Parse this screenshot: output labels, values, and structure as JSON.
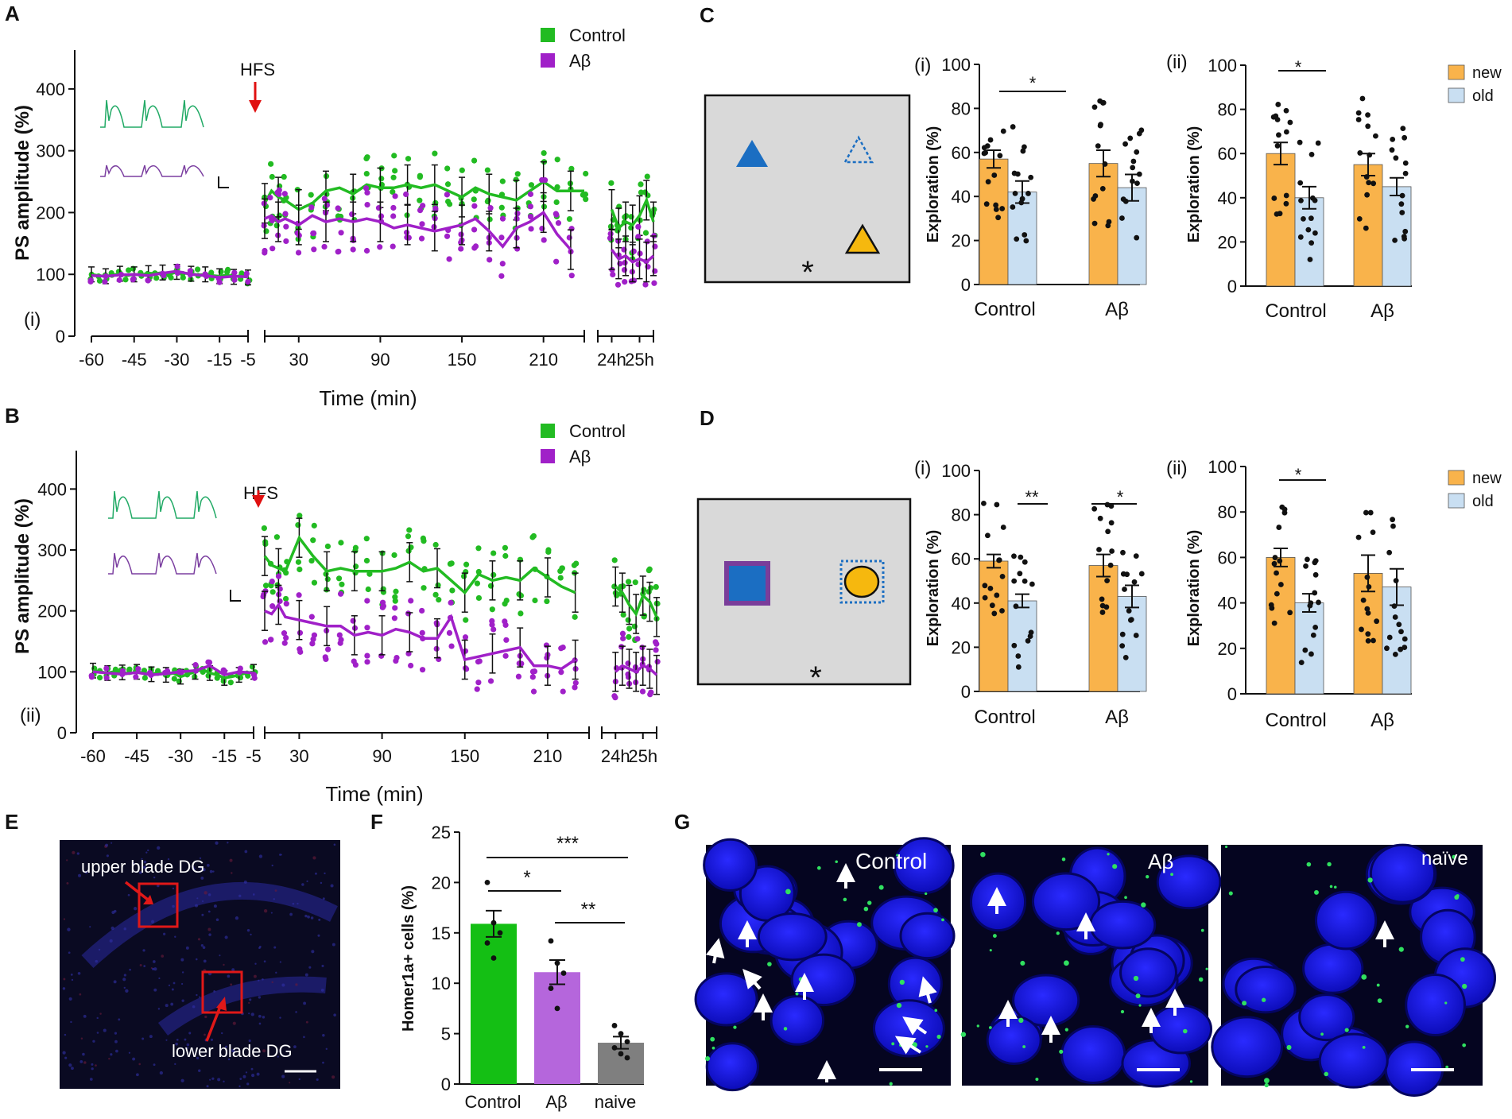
{
  "colors": {
    "control": "#22bb22",
    "abeta": "#a020c8",
    "new": "#f9b34b",
    "old": "#c9dff2",
    "hfs_arrow": "#e01010",
    "box": "#d9d9d9",
    "blue_object": "#1b6ec2",
    "yellow_object": "#f6b80e",
    "purple_frame": "#7a3d9a",
    "naive_bar": "#7f7f7f",
    "abeta_bar": "#b566dc",
    "control_bar": "#14bf14",
    "nuclei": "#1414dc",
    "roi_box": "#e01818"
  },
  "chart_data": [
    {
      "panel": "A",
      "subpanel": "(i)",
      "type": "line",
      "ylabel": "PS amplitude (%)",
      "xlabel": "Time (min)",
      "ylim": [
        0,
        450
      ],
      "yticks": [
        0,
        100,
        200,
        300,
        400
      ],
      "annotation": "HFS",
      "legend": [
        "Control",
        "Aβ"
      ],
      "segments": [
        {
          "range": [
            -60,
            -5
          ],
          "ticks": [
            -60,
            -45,
            -30,
            -15,
            -5
          ],
          "tick_labels": [
            "-60",
            "-45",
            "-30",
            "-15",
            "-5"
          ]
        },
        {
          "range": [
            5,
            240
          ],
          "ticks": [
            30,
            90,
            150,
            210
          ],
          "tick_labels": [
            "30",
            "90",
            "150",
            "210"
          ]
        },
        {
          "range": [
            23.5,
            25.5
          ],
          "ticks": [
            24,
            25
          ],
          "tick_labels": [
            "24h",
            "25h"
          ]
        }
      ],
      "series": [
        {
          "name": "Control",
          "pre": {
            "x": [
              -60,
              -57.5,
              -55,
              -52.5,
              -50,
              -47.5,
              -45,
              -42.5,
              -40,
              -37.5,
              -35,
              -32.5,
              -30,
              -27.5,
              -25,
              -22.5,
              -20,
              -17.5,
              -15,
              -12.5,
              -10,
              -7.5,
              -5
            ],
            "y": [
              100,
              98,
              97,
              99,
              101,
              98,
              100,
              99,
              102,
              101,
              103,
              100,
              104,
              102,
              101,
              99,
              100,
              98,
              97,
              99,
              96,
              98,
              95
            ]
          },
          "post": {
            "x": [
              5,
              10,
              15,
              20,
              30,
              40,
              50,
              60,
              70,
              80,
              90,
              100,
              110,
              120,
              130,
              140,
              150,
              160,
              170,
              180,
              190,
              200,
              210,
              220,
              230,
              240
            ],
            "y": [
              215,
              235,
              225,
              220,
              205,
              215,
              235,
              240,
              230,
              245,
              240,
              240,
              245,
              240,
              245,
              235,
              225,
              240,
              230,
              225,
              220,
              235,
              250,
              235,
              235,
              235
            ]
          },
          "late": {
            "x": [
              24,
              24.25,
              24.5,
              24.75,
              25,
              25.25,
              25.5
            ],
            "y": [
              205,
              175,
              185,
              180,
              195,
              220,
              185
            ]
          }
        },
        {
          "name": "Aβ",
          "pre": {
            "x": [
              -60,
              -55,
              -50,
              -45,
              -40,
              -35,
              -30,
              -25,
              -20,
              -15,
              -10,
              -5
            ],
            "y": [
              98,
              97,
              99,
              100,
              98,
              102,
              105,
              100,
              98,
              95,
              97,
              96
            ]
          },
          "post": {
            "x": [
              5,
              10,
              15,
              20,
              30,
              40,
              50,
              60,
              70,
              80,
              90,
              100,
              110,
              120,
              130,
              140,
              150,
              160,
              170,
              180,
              190,
              200,
              210,
              220,
              230
            ],
            "y": [
              190,
              195,
              185,
              190,
              180,
              195,
              185,
              190,
              185,
              190,
              185,
              175,
              180,
              175,
              170,
              175,
              180,
              190,
              170,
              145,
              175,
              185,
              200,
              165,
              140
            ]
          },
          "late": {
            "x": [
              24,
              24.25,
              24.5,
              24.75,
              25,
              25.25,
              25.5
            ],
            "y": [
              140,
              125,
              130,
              120,
              125,
              120,
              130
            ]
          }
        }
      ]
    },
    {
      "panel": "B",
      "subpanel": "(ii)",
      "type": "line",
      "ylabel": "PS amplitude (%)",
      "xlabel": "Time (min)",
      "ylim": [
        0,
        450
      ],
      "yticks": [
        0,
        100,
        200,
        300,
        400
      ],
      "annotation": "HFS",
      "legend": [
        "Control",
        "Aβ"
      ],
      "segments": [
        {
          "range": [
            -60,
            -5
          ],
          "ticks": [
            -60,
            -45,
            -30,
            -15,
            -5
          ],
          "tick_labels": [
            "-60",
            "-45",
            "-30",
            "-15",
            "-5"
          ]
        },
        {
          "range": [
            5,
            240
          ],
          "ticks": [
            30,
            90,
            150,
            210
          ],
          "tick_labels": [
            "30",
            "90",
            "150",
            "210"
          ]
        },
        {
          "range": [
            23.5,
            25.5
          ],
          "ticks": [
            24,
            25
          ],
          "tick_labels": [
            "24h",
            "25h"
          ]
        }
      ],
      "series": [
        {
          "name": "Control",
          "pre": {
            "x": [
              -60,
              -57.5,
              -55,
              -52.5,
              -50,
              -47.5,
              -45,
              -42.5,
              -40,
              -37.5,
              -35,
              -32.5,
              -30,
              -27.5,
              -25,
              -22.5,
              -20,
              -17.5,
              -15,
              -12.5,
              -10,
              -7.5,
              -5
            ],
            "y": [
              102,
              100,
              98,
              101,
              99,
              97,
              100,
              98,
              96,
              99,
              95,
              98,
              92,
              96,
              100,
              104,
              98,
              95,
              90,
              92,
              95,
              98,
              100
            ]
          },
          "post": {
            "x": [
              5,
              10,
              15,
              20,
              30,
              40,
              50,
              60,
              70,
              80,
              90,
              100,
              110,
              120,
              130,
              140,
              150,
              160,
              170,
              180,
              190,
              200,
              210,
              220,
              230
            ],
            "y": [
              290,
              275,
              270,
              265,
              320,
              290,
              265,
              270,
              265,
              265,
              265,
              270,
              280,
              265,
              270,
              250,
              230,
              260,
              250,
              255,
              250,
              270,
              255,
              240,
              230
            ]
          },
          "late": {
            "x": [
              24,
              24.25,
              24.5,
              24.75,
              25,
              25.25,
              25.5
            ],
            "y": [
              240,
              230,
              210,
              195,
              225,
              215,
              190
            ]
          }
        },
        {
          "name": "Aβ",
          "pre": {
            "x": [
              -60,
              -55,
              -50,
              -45,
              -40,
              -35,
              -30,
              -25,
              -20,
              -15,
              -10,
              -5
            ],
            "y": [
              100,
              98,
              96,
              99,
              95,
              97,
              100,
              102,
              110,
              95,
              100,
              98
            ]
          },
          "post": {
            "x": [
              5,
              10,
              15,
              20,
              30,
              40,
              50,
              60,
              70,
              80,
              90,
              100,
              110,
              120,
              130,
              140,
              150,
              160,
              170,
              180,
              190,
              200,
              210,
              220,
              230
            ],
            "y": [
              200,
              195,
              210,
              190,
              185,
              180,
              175,
              175,
              160,
              165,
              160,
              170,
              165,
              155,
              155,
              190,
              120,
              125,
              130,
              135,
              140,
              110,
              110,
              105,
              120
            ]
          },
          "late": {
            "x": [
              24,
              24.25,
              24.5,
              24.75,
              25,
              25.25,
              25.5
            ],
            "y": [
              100,
              110,
              105,
              100,
              110,
              105,
              95
            ]
          }
        }
      ]
    },
    {
      "panel": "C",
      "subpanel": "(i)",
      "type": "bar",
      "ylabel": "Exploration (%)",
      "ylim": [
        0,
        100
      ],
      "yticks": [
        0,
        20,
        40,
        60,
        80,
        100
      ],
      "categories": [
        "Control",
        "Aβ"
      ],
      "legend": [
        "new",
        "old"
      ],
      "series": [
        {
          "name": "new",
          "values": [
            57,
            55
          ],
          "sem": [
            4,
            6
          ]
        },
        {
          "name": "old",
          "values": [
            42,
            44
          ],
          "sem": [
            5,
            6
          ]
        }
      ],
      "significance": [
        {
          "group": "Control",
          "label": "*"
        }
      ]
    },
    {
      "panel": "C",
      "subpanel": "(ii)",
      "type": "bar",
      "ylabel": "Exploration (%)",
      "ylim": [
        0,
        100
      ],
      "yticks": [
        0,
        20,
        40,
        60,
        80,
        100
      ],
      "categories": [
        "Control",
        "Aβ"
      ],
      "legend": [
        "new",
        "old"
      ],
      "series": [
        {
          "name": "new",
          "values": [
            60,
            55
          ],
          "sem": [
            5,
            5
          ]
        },
        {
          "name": "old",
          "values": [
            40,
            45
          ],
          "sem": [
            5,
            4
          ]
        }
      ],
      "significance": [
        {
          "group": "Control",
          "label": "*"
        }
      ]
    },
    {
      "panel": "D",
      "subpanel": "(i)",
      "type": "bar",
      "ylabel": "Exploration (%)",
      "ylim": [
        0,
        100
      ],
      "yticks": [
        0,
        20,
        40,
        60,
        80,
        100
      ],
      "categories": [
        "Control",
        "Aβ"
      ],
      "legend": [
        "new",
        "old"
      ],
      "series": [
        {
          "name": "new",
          "values": [
            59,
            57
          ],
          "sem": [
            3,
            5
          ]
        },
        {
          "name": "old",
          "values": [
            41,
            43
          ],
          "sem": [
            3,
            5
          ]
        }
      ],
      "significance": [
        {
          "group": "Control",
          "label": "**"
        },
        {
          "group": "Aβ",
          "label": "*"
        }
      ]
    },
    {
      "panel": "D",
      "subpanel": "(ii)",
      "type": "bar",
      "ylabel": "Exploration (%)",
      "ylim": [
        0,
        100
      ],
      "yticks": [
        0,
        20,
        40,
        60,
        80,
        100
      ],
      "categories": [
        "Control",
        "Aβ"
      ],
      "legend": [
        "new",
        "old"
      ],
      "series": [
        {
          "name": "new",
          "values": [
            60,
            53
          ],
          "sem": [
            4,
            8
          ]
        },
        {
          "name": "old",
          "values": [
            40,
            47
          ],
          "sem": [
            4,
            8
          ]
        }
      ],
      "significance": [
        {
          "group": "Control",
          "label": "*"
        }
      ]
    },
    {
      "panel": "F",
      "type": "bar",
      "ylabel": "Homer1a+ cells (%)",
      "ylim": [
        0,
        25
      ],
      "yticks": [
        0,
        5,
        10,
        15,
        20,
        25
      ],
      "categories": [
        "Control",
        "Aβ",
        "naive"
      ],
      "values": [
        15.9,
        11.1,
        4.1
      ],
      "sem": [
        1.3,
        1.2,
        0.6
      ],
      "points": [
        [
          20,
          16,
          15,
          14,
          12.5
        ],
        [
          14.2,
          12,
          11,
          9.5,
          7.5
        ],
        [
          5.8,
          5.0,
          4.2,
          3.6,
          3.0,
          2.6
        ]
      ],
      "significance": [
        {
          "pair": [
            "Control",
            "Aβ"
          ],
          "label": "*"
        },
        {
          "pair": [
            "Aβ",
            "naive"
          ],
          "label": "**"
        },
        {
          "pair": [
            "Control",
            "naive"
          ],
          "label": "***"
        }
      ]
    }
  ],
  "panels": {
    "A": {
      "letter": "A",
      "subpanel": "(i)",
      "hfs": "HFS",
      "legend_control": "Control",
      "legend_abeta": "Aβ",
      "ylabel": "PS amplitude (%)",
      "xlabel": "Time (min)"
    },
    "B": {
      "letter": "B",
      "subpanel": "(ii)",
      "hfs": "HFS",
      "legend_control": "Control",
      "legend_abeta": "Aβ",
      "ylabel": "PS amplitude (%)",
      "xlabel": "Time (min)"
    },
    "C": {
      "letter": "C",
      "sub_i": "(i)",
      "sub_ii": "(ii)",
      "legend_new": "new",
      "legend_old": "old",
      "ylabel": "Exploration (%)",
      "cat1": "Control",
      "cat2": "Aβ",
      "star_i": "*",
      "star_ii": "*",
      "box_star": "*"
    },
    "D": {
      "letter": "D",
      "sub_i": "(i)",
      "sub_ii": "(ii)",
      "legend_new": "new",
      "legend_old": "old",
      "ylabel": "Exploration (%)",
      "cat1": "Control",
      "cat2": "Aβ",
      "star_i_ctrl": "**",
      "star_i_ab": "*",
      "star_ii": "*",
      "box_star": "*"
    },
    "E": {
      "letter": "E",
      "upper": "upper blade DG",
      "lower": "lower blade DG"
    },
    "F": {
      "letter": "F",
      "ylabel": "Homer1a+ cells (%)",
      "cat1": "Control",
      "cat2": "Aβ",
      "cat3": "naive",
      "sig1": "*",
      "sig2": "**",
      "sig3": "***"
    },
    "G": {
      "letter": "G",
      "label1": "Control",
      "label2": "Aβ",
      "label3": "naïve"
    }
  }
}
